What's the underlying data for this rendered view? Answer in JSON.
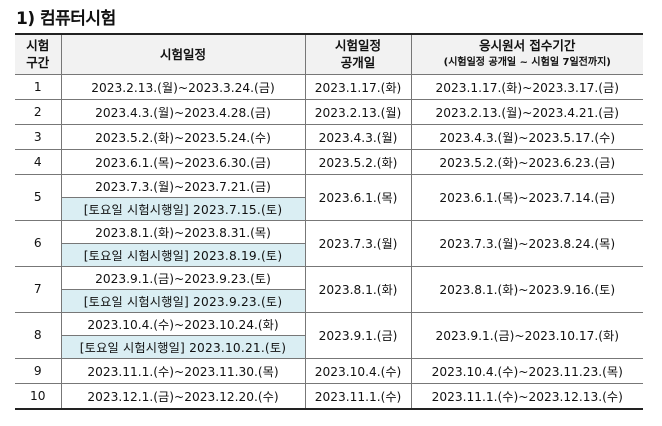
{
  "title": "1) 컴퓨터시험",
  "headers": {
    "col1_line1": "시험",
    "col1_line2": "구간",
    "col2": "시험일정",
    "col3_line1": "시험일정",
    "col3_line2": "공개일",
    "col4_line1": "응시원서 접수기간",
    "col4_line2": "(시험일정 공개일 ~ 시험일 7일전까지)"
  },
  "rows": [
    {
      "section": "1",
      "exam": "2023.2.13.(월)~2023.3.24.(금)",
      "saturday": "",
      "announce": "2023.1.17.(화)",
      "receipt": "2023.1.17.(화)~2023.3.17.(금)"
    },
    {
      "section": "2",
      "exam": "2023.4.3.(월)~2023.4.28.(금)",
      "saturday": "",
      "announce": "2023.2.13.(월)",
      "receipt": "2023.2.13.(월)~2023.4.21.(금)"
    },
    {
      "section": "3",
      "exam": "2023.5.2.(화)~2023.5.24.(수)",
      "saturday": "",
      "announce": "2023.4.3.(월)",
      "receipt": "2023.4.3.(월)~2023.5.17.(수)"
    },
    {
      "section": "4",
      "exam": "2023.6.1.(목)~2023.6.30.(금)",
      "saturday": "",
      "announce": "2023.5.2.(화)",
      "receipt": "2023.5.2.(화)~2023.6.23.(금)"
    },
    {
      "section": "5",
      "exam": "2023.7.3.(월)~2023.7.21.(금)",
      "saturday": "[토요일 시험시행일] 2023.7.15.(토)",
      "announce": "2023.6.1.(목)",
      "receipt": "2023.6.1.(목)~2023.7.14.(금)"
    },
    {
      "section": "6",
      "exam": "2023.8.1.(화)~2023.8.31.(목)",
      "saturday": "[토요일 시험시행일] 2023.8.19.(토)",
      "announce": "2023.7.3.(월)",
      "receipt": "2023.7.3.(월)~2023.8.24.(목)"
    },
    {
      "section": "7",
      "exam": "2023.9.1.(금)~2023.9.23.(토)",
      "saturday": "[토요일 시험시행일] 2023.9.23.(토)",
      "announce": "2023.8.1.(화)",
      "receipt": "2023.8.1.(화)~2023.9.16.(토)"
    },
    {
      "section": "8",
      "exam": "2023.10.4.(수)~2023.10.24.(화)",
      "saturday": "[토요일 시험시행일] 2023.10.21.(토)",
      "announce": "2023.9.1.(금)",
      "receipt": "2023.9.1.(금)~2023.10.17.(화)"
    },
    {
      "section": "9",
      "exam": "2023.11.1.(수)~2023.11.30.(목)",
      "saturday": "",
      "announce": "2023.10.4.(수)",
      "receipt": "2023.10.4.(수)~2023.11.23.(목)"
    },
    {
      "section": "10",
      "exam": "2023.12.1.(금)~2023.12.20.(수)",
      "saturday": "",
      "announce": "2023.11.1.(수)",
      "receipt": "2023.11.1.(수)~2023.12.13.(수)"
    }
  ]
}
